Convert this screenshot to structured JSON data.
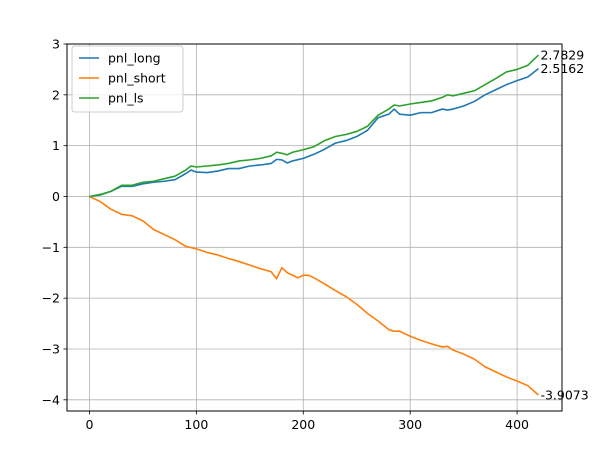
{
  "chart_data": {
    "type": "line",
    "title": "",
    "xlabel": "",
    "ylabel": "",
    "xlim": [
      -21,
      442
    ],
    "ylim": [
      -4.22,
      3.0
    ],
    "grid": true,
    "legend_placement": "top-left",
    "x_ticks": [
      0,
      100,
      200,
      300,
      400
    ],
    "x_tick_labels": [
      "0",
      "100",
      "200",
      "300",
      "400"
    ],
    "y_ticks": [
      -4,
      -3,
      -2,
      -1,
      0,
      1,
      2,
      3
    ],
    "y_tick_labels": [
      "−4",
      "−3",
      "−2",
      "−1",
      "0",
      "1",
      "2",
      "3"
    ],
    "series": [
      {
        "name": "pnl_long",
        "color": "#1f77b4",
        "end_label": "2.5162",
        "points": [
          [
            0,
            0
          ],
          [
            10,
            0.03
          ],
          [
            20,
            0.1
          ],
          [
            30,
            0.2
          ],
          [
            40,
            0.2
          ],
          [
            50,
            0.25
          ],
          [
            60,
            0.28
          ],
          [
            70,
            0.3
          ],
          [
            80,
            0.33
          ],
          [
            90,
            0.45
          ],
          [
            95,
            0.52
          ],
          [
            100,
            0.48
          ],
          [
            110,
            0.47
          ],
          [
            120,
            0.5
          ],
          [
            130,
            0.55
          ],
          [
            140,
            0.55
          ],
          [
            150,
            0.6
          ],
          [
            160,
            0.62
          ],
          [
            170,
            0.65
          ],
          [
            175,
            0.73
          ],
          [
            180,
            0.72
          ],
          [
            185,
            0.66
          ],
          [
            190,
            0.7
          ],
          [
            200,
            0.75
          ],
          [
            210,
            0.83
          ],
          [
            220,
            0.93
          ],
          [
            230,
            1.05
          ],
          [
            240,
            1.1
          ],
          [
            250,
            1.18
          ],
          [
            260,
            1.3
          ],
          [
            270,
            1.55
          ],
          [
            280,
            1.62
          ],
          [
            285,
            1.72
          ],
          [
            290,
            1.62
          ],
          [
            300,
            1.6
          ],
          [
            310,
            1.65
          ],
          [
            320,
            1.65
          ],
          [
            330,
            1.72
          ],
          [
            335,
            1.7
          ],
          [
            340,
            1.72
          ],
          [
            350,
            1.78
          ],
          [
            360,
            1.87
          ],
          [
            370,
            2.0
          ],
          [
            380,
            2.1
          ],
          [
            390,
            2.2
          ],
          [
            400,
            2.28
          ],
          [
            410,
            2.35
          ],
          [
            420,
            2.5162
          ]
        ]
      },
      {
        "name": "pnl_short",
        "color": "#ff7f0e",
        "end_label": "-3.9073",
        "points": [
          [
            0,
            0
          ],
          [
            10,
            -0.1
          ],
          [
            20,
            -0.25
          ],
          [
            30,
            -0.35
          ],
          [
            40,
            -0.38
          ],
          [
            50,
            -0.48
          ],
          [
            60,
            -0.65
          ],
          [
            70,
            -0.75
          ],
          [
            80,
            -0.85
          ],
          [
            90,
            -0.98
          ],
          [
            100,
            -1.03
          ],
          [
            110,
            -1.1
          ],
          [
            120,
            -1.15
          ],
          [
            130,
            -1.22
          ],
          [
            140,
            -1.28
          ],
          [
            150,
            -1.35
          ],
          [
            160,
            -1.42
          ],
          [
            170,
            -1.48
          ],
          [
            175,
            -1.62
          ],
          [
            180,
            -1.4
          ],
          [
            185,
            -1.5
          ],
          [
            190,
            -1.55
          ],
          [
            195,
            -1.6
          ],
          [
            200,
            -1.55
          ],
          [
            205,
            -1.55
          ],
          [
            210,
            -1.6
          ],
          [
            220,
            -1.72
          ],
          [
            230,
            -1.85
          ],
          [
            240,
            -1.97
          ],
          [
            250,
            -2.12
          ],
          [
            260,
            -2.3
          ],
          [
            270,
            -2.45
          ],
          [
            280,
            -2.62
          ],
          [
            285,
            -2.65
          ],
          [
            290,
            -2.65
          ],
          [
            300,
            -2.75
          ],
          [
            310,
            -2.83
          ],
          [
            320,
            -2.9
          ],
          [
            330,
            -2.96
          ],
          [
            335,
            -2.95
          ],
          [
            340,
            -3.02
          ],
          [
            350,
            -3.1
          ],
          [
            360,
            -3.2
          ],
          [
            370,
            -3.35
          ],
          [
            380,
            -3.45
          ],
          [
            390,
            -3.55
          ],
          [
            400,
            -3.63
          ],
          [
            410,
            -3.72
          ],
          [
            420,
            -3.9073
          ]
        ]
      },
      {
        "name": "pnl_ls",
        "color": "#2ca02c",
        "end_label": "2.7829",
        "points": [
          [
            0,
            0
          ],
          [
            10,
            0.04
          ],
          [
            20,
            0.1
          ],
          [
            30,
            0.22
          ],
          [
            40,
            0.22
          ],
          [
            50,
            0.28
          ],
          [
            60,
            0.3
          ],
          [
            70,
            0.35
          ],
          [
            80,
            0.4
          ],
          [
            90,
            0.52
          ],
          [
            95,
            0.6
          ],
          [
            100,
            0.58
          ],
          [
            110,
            0.6
          ],
          [
            120,
            0.62
          ],
          [
            130,
            0.65
          ],
          [
            140,
            0.7
          ],
          [
            150,
            0.72
          ],
          [
            160,
            0.75
          ],
          [
            170,
            0.8
          ],
          [
            175,
            0.87
          ],
          [
            180,
            0.85
          ],
          [
            185,
            0.82
          ],
          [
            190,
            0.87
          ],
          [
            200,
            0.92
          ],
          [
            210,
            0.98
          ],
          [
            220,
            1.1
          ],
          [
            230,
            1.18
          ],
          [
            240,
            1.22
          ],
          [
            250,
            1.28
          ],
          [
            260,
            1.38
          ],
          [
            270,
            1.6
          ],
          [
            280,
            1.72
          ],
          [
            285,
            1.8
          ],
          [
            290,
            1.78
          ],
          [
            300,
            1.82
          ],
          [
            310,
            1.85
          ],
          [
            320,
            1.88
          ],
          [
            330,
            1.95
          ],
          [
            335,
            2.0
          ],
          [
            340,
            1.98
          ],
          [
            350,
            2.03
          ],
          [
            360,
            2.08
          ],
          [
            370,
            2.2
          ],
          [
            380,
            2.32
          ],
          [
            390,
            2.45
          ],
          [
            400,
            2.5
          ],
          [
            410,
            2.58
          ],
          [
            420,
            2.7829
          ]
        ]
      }
    ]
  }
}
